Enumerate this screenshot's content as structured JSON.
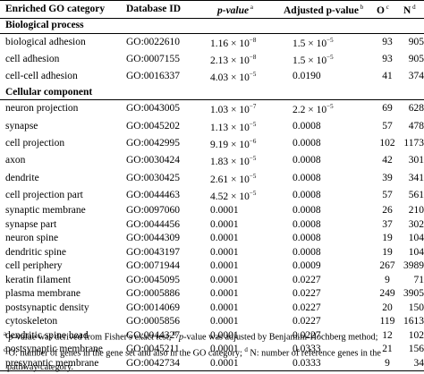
{
  "table": {
    "headers": {
      "category": "Enriched GO category",
      "database_id": "Database ID",
      "pvalue": "p-value",
      "pvalue_sup": "a",
      "adj_pvalue": "Adjusted p-value",
      "adj_pvalue_sup": "b",
      "o": "O",
      "o_sup": "c",
      "n": "N",
      "n_sup": "d"
    },
    "sections": [
      {
        "title": "Biological process",
        "rows": [
          {
            "term": "biological adhesion",
            "id": "GO:0022610",
            "p_mant": "1.16",
            "p_exp": "-8",
            "adj_mant": "1.5",
            "adj_exp": "-5",
            "adj": "",
            "o": "93",
            "n": "905"
          },
          {
            "term": "cell adhesion",
            "id": "GO:0007155",
            "p_mant": "2.13",
            "p_exp": "-8",
            "adj_mant": "1.5",
            "adj_exp": "-5",
            "adj": "",
            "o": "93",
            "n": "905"
          },
          {
            "term": "cell-cell adhesion",
            "id": "GO:0016337",
            "p_mant": "4.03",
            "p_exp": "-5",
            "adj_mant": "",
            "adj_exp": "",
            "adj": "0.0190",
            "o": "41",
            "n": "374"
          }
        ]
      },
      {
        "title": "Cellular component",
        "rows": [
          {
            "term": "neuron projection",
            "id": "GO:0043005",
            "p_mant": "1.03",
            "p_exp": "-7",
            "adj_mant": "2.2",
            "adj_exp": "-5",
            "adj": "",
            "o": "69",
            "n": "628"
          },
          {
            "term": "synapse",
            "id": "GO:0045202",
            "p_mant": "1.13",
            "p_exp": "-5",
            "adj_mant": "",
            "adj_exp": "",
            "adj": "0.0008",
            "o": "57",
            "n": "478"
          },
          {
            "term": "cell projection",
            "id": "GO:0042995",
            "p_mant": "9.19",
            "p_exp": "-6",
            "adj_mant": "",
            "adj_exp": "",
            "adj": "0.0008",
            "o": "102",
            "n": "1173"
          },
          {
            "term": "axon",
            "id": "GO:0030424",
            "p_mant": "1.83",
            "p_exp": "-5",
            "adj_mant": "",
            "adj_exp": "",
            "adj": "0.0008",
            "o": "42",
            "n": "301"
          },
          {
            "term": "dendrite",
            "id": "GO:0030425",
            "p_mant": "2.61",
            "p_exp": "-5",
            "adj_mant": "",
            "adj_exp": "",
            "adj": "0.0008",
            "o": "39",
            "n": "341"
          },
          {
            "term": "cell projection part",
            "id": "GO:0044463",
            "p_mant": "4.52",
            "p_exp": "-5",
            "adj_mant": "",
            "adj_exp": "",
            "adj": "0.0008",
            "o": "57",
            "n": "561"
          },
          {
            "term": "synaptic membrane",
            "id": "GO:0097060",
            "p": "0.0001",
            "adj": "0.0008",
            "o": "26",
            "n": "210"
          },
          {
            "term": "synapse part",
            "id": "GO:0044456",
            "p": "0.0001",
            "adj": "0.0008",
            "o": "37",
            "n": "302"
          },
          {
            "term": "neuron spine",
            "id": "GO:0044309",
            "p": "0.0001",
            "adj": "0.0008",
            "o": "19",
            "n": "104"
          },
          {
            "term": "dendritic spine",
            "id": "GO:0043197",
            "p": "0.0001",
            "adj": "0.0008",
            "o": "19",
            "n": "104"
          },
          {
            "term": "cell periphery",
            "id": "GO:0071944",
            "p": "0.0001",
            "adj": "0.0009",
            "o": "267",
            "n": "3989"
          },
          {
            "term": "keratin filament",
            "id": "GO:0045095",
            "p": "0.0001",
            "adj": "0.0227",
            "o": "9",
            "n": "71"
          },
          {
            "term": "plasma membrane",
            "id": "GO:0005886",
            "p": "0.0001",
            "adj": "0.0227",
            "o": "249",
            "n": "3905"
          },
          {
            "term": "postsynaptic density",
            "id": "GO:0014069",
            "p": "0.0001",
            "adj": "0.0227",
            "o": "20",
            "n": "150"
          },
          {
            "term": "cytoskeleton",
            "id": "GO:0005856",
            "p": "0.0001",
            "adj": "0.0227",
            "o": "119",
            "n": "1613"
          },
          {
            "term": "dendritic spine head",
            "id": "GO:0044327",
            "p": "0.0001",
            "adj": "0.0227",
            "o": "12",
            "n": "102"
          },
          {
            "term": "postsynaptic membrane",
            "id": "GO:0045211",
            "p": "0.0001",
            "adj": "0.0333",
            "o": "21",
            "n": "156"
          },
          {
            "term": "presynaptic membrane",
            "id": "GO:0042734",
            "p": "0.0001",
            "adj": "0.0333",
            "o": "9",
            "n": "34"
          }
        ]
      }
    ],
    "times": "×",
    "ten": "10"
  },
  "footnotes": {
    "a_sup": "a",
    "a_text": "p-value was derived from Fisher's exact test;",
    "b_sup": "b",
    "b_text": "p-value was adjusted by Benjamini-Hochberg method;",
    "c_sup": "c",
    "c_text": "O: number of genes in the gene set and also in the GO category;",
    "d_sup": "d",
    "d_text": "N: number of reference genes in the",
    "d_text2": "pathway category."
  }
}
